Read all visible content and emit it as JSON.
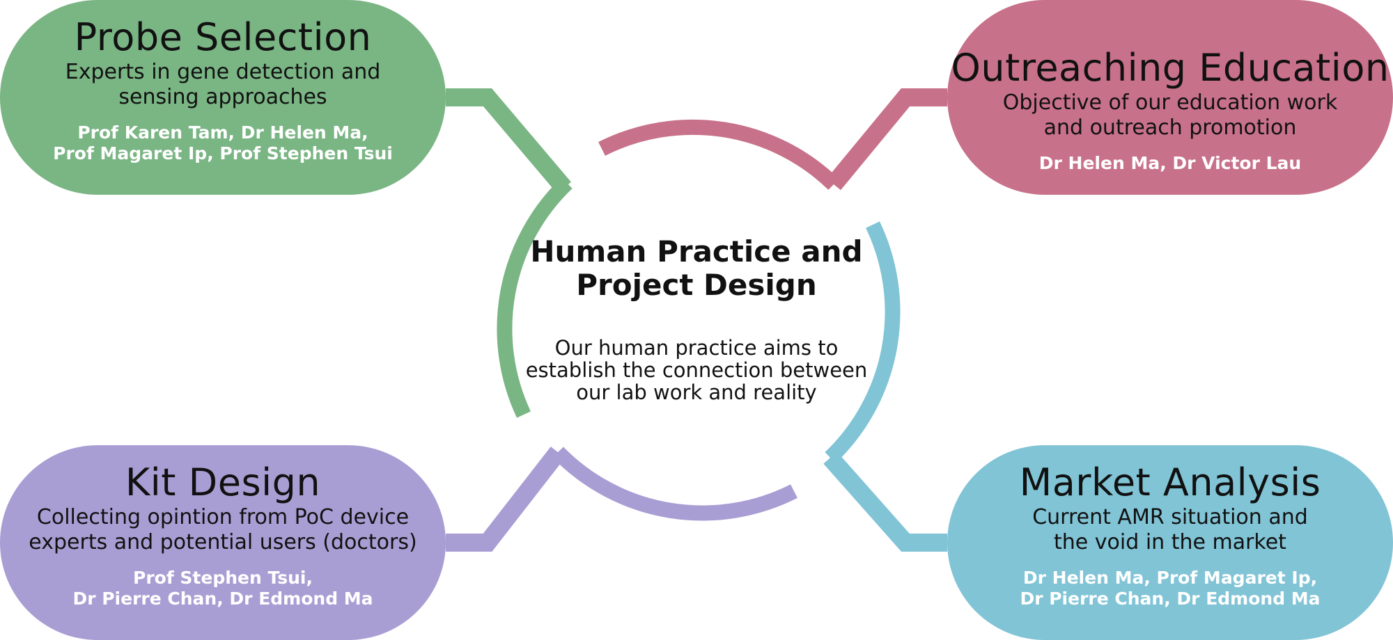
{
  "colors": {
    "probe": "#7ab584",
    "outreach": "#c8718a",
    "kit": "#a99ed4",
    "market": "#80c4d6"
  },
  "center": {
    "title": "Human Practice and\nProject Design",
    "description": "Our human practice aims to\nestablish the connection between\nour lab work and reality"
  },
  "cards": {
    "probe": {
      "title": "Probe Selection",
      "description": "Experts in gene detection and\nsensing approaches",
      "people": "Prof Karen Tam, Dr Helen Ma,\nProf Magaret Ip, Prof Stephen Tsui"
    },
    "outreach": {
      "title": "Outreaching Education",
      "description": "Objective of our education work\nand outreach promotion",
      "people": "Dr Helen Ma, Dr Victor Lau"
    },
    "kit": {
      "title": "Kit Design",
      "description": "Collecting opintion from PoC device\nexperts and potential users (doctors)",
      "people": "Prof Stephen Tsui,\nDr Pierre Chan, Dr Edmond Ma"
    },
    "market": {
      "title": "Market Analysis",
      "description": "Current AMR situation and\nthe void in the market",
      "people": "Dr Helen Ma, Prof Magaret Ip,\nDr Pierre Chan, Dr Edmond Ma"
    }
  }
}
